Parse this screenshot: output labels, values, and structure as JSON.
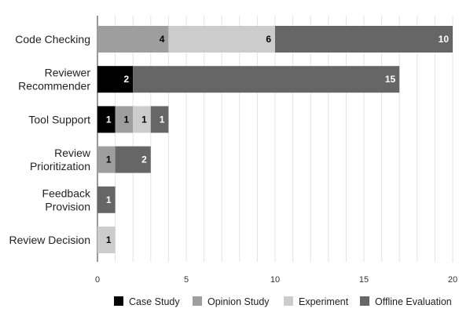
{
  "chart_data": {
    "type": "bar",
    "orientation": "horizontal",
    "stacked": true,
    "categories": [
      "Code Checking",
      "Reviewer Recommender",
      "Tool Support",
      "Review Prioritization",
      "Feedback Provision",
      "Review Decision"
    ],
    "category_label_lines": [
      [
        "Code Checking"
      ],
      [
        "Reviewer",
        "Recommender"
      ],
      [
        "Tool Support"
      ],
      [
        "Review",
        "Prioritization"
      ],
      [
        "Feedback",
        "Provision"
      ],
      [
        "Review Decision"
      ]
    ],
    "series": [
      {
        "name": "Case Study",
        "values": [
          0,
          2,
          1,
          0,
          0,
          0
        ],
        "color": "#000000",
        "label_color": "#ffffff"
      },
      {
        "name": "Opinion Study",
        "values": [
          4,
          0,
          1,
          1,
          0,
          0
        ],
        "color": "#9e9e9e",
        "label_color": "#000000"
      },
      {
        "name": "Experiment",
        "values": [
          6,
          0,
          1,
          0,
          0,
          1
        ],
        "color": "#cccccc",
        "label_color": "#000000"
      },
      {
        "name": "Offline Evaluation",
        "values": [
          10,
          15,
          1,
          2,
          1,
          0
        ],
        "color": "#666666",
        "label_color": "#ffffff"
      }
    ],
    "xlim": [
      0,
      20
    ],
    "xticks": [
      0,
      5,
      10,
      15,
      20
    ],
    "grid": "vertical every 1 unit",
    "legend_position": "bottom",
    "title": "",
    "xlabel": "",
    "ylabel": ""
  }
}
